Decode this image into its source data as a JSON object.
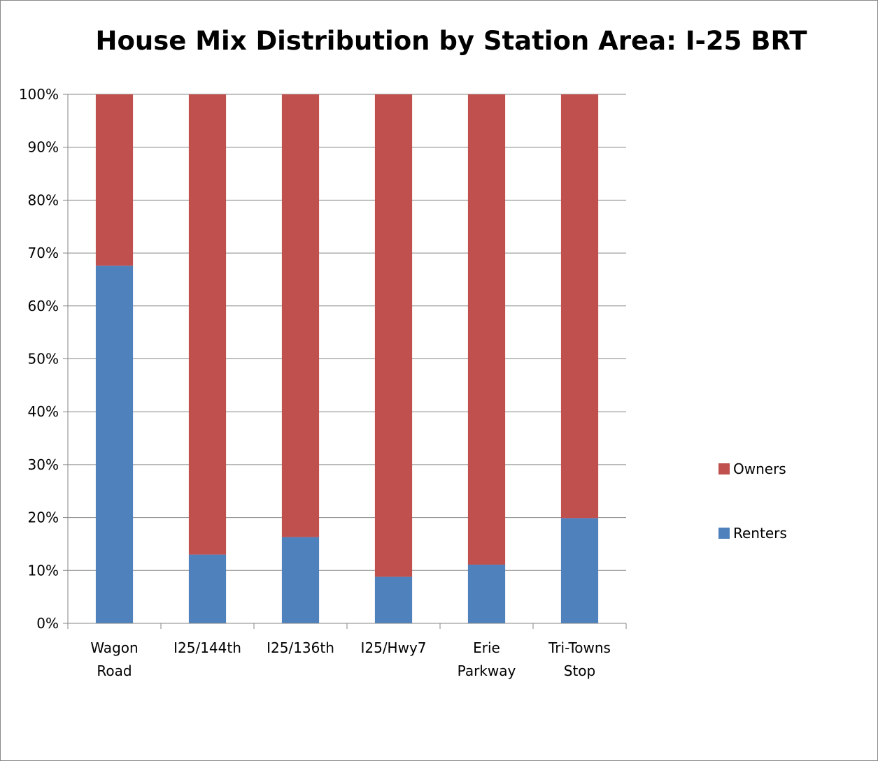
{
  "chart_data": {
    "type": "bar",
    "stacked": true,
    "normalized": true,
    "title": "House Mix Distribution by Station Area: I-25 BRT",
    "categories": [
      [
        "Wagon",
        "Road"
      ],
      [
        "I25/144th"
      ],
      [
        "I25/136th"
      ],
      [
        "I25/Hwy7"
      ],
      [
        "Erie",
        "Parkway"
      ],
      [
        "Tri-Towns",
        "Stop"
      ]
    ],
    "series": [
      {
        "name": "Renters",
        "color": "#4f81bd",
        "values": [
          67.6,
          13.0,
          16.3,
          8.8,
          11.1,
          19.9
        ]
      },
      {
        "name": "Owners",
        "color": "#c0504d",
        "values": [
          32.4,
          87.0,
          83.7,
          91.2,
          88.9,
          80.1
        ]
      }
    ],
    "y_ticks": [
      "0%",
      "10%",
      "20%",
      "30%",
      "40%",
      "50%",
      "60%",
      "70%",
      "80%",
      "90%",
      "100%"
    ],
    "ylim": [
      0,
      100
    ],
    "grid": true,
    "legend": {
      "position": "right",
      "order": [
        "Owners",
        "Renters"
      ]
    }
  }
}
